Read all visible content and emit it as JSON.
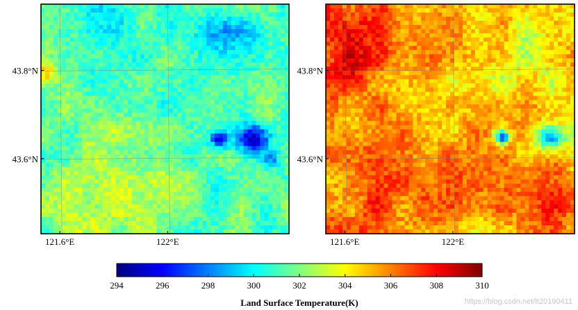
{
  "chart_data": {
    "type": "heatmap",
    "colormap": "jet",
    "colorbar": {
      "min": 294,
      "max": 310,
      "ticks": [
        "294",
        "296",
        "298",
        "300",
        "302",
        "304",
        "306",
        "308",
        "310"
      ],
      "title": "Land Surface Temperature(K)"
    },
    "panels": [
      {
        "name": "left",
        "grid_cols": 60,
        "grid_rows": 55,
        "base_temperature": 301.4,
        "noise_amplitude": 1.1,
        "y_tick_labels": [
          {
            "label": "43.8°N",
            "lat": 43.8
          },
          {
            "label": "43.6°N",
            "lat": 43.6
          }
        ],
        "x_tick_labels": [
          {
            "label": "121.6°E",
            "lon": 121.6
          },
          {
            "label": "122°E",
            "lon": 122.0
          }
        ],
        "features": [
          {
            "u": 0.78,
            "v": 0.18,
            "radius": 0.11,
            "delta": -2.3
          },
          {
            "u": 0.86,
            "v": 0.59,
            "radius": 0.05,
            "delta": -6.5
          },
          {
            "u": 0.72,
            "v": 0.59,
            "radius": 0.025,
            "delta": -6.0
          },
          {
            "u": 0.93,
            "v": 0.68,
            "radius": 0.03,
            "delta": -3.2
          },
          {
            "u": 0.3,
            "v": 0.02,
            "radius": 0.06,
            "delta": -2.0
          },
          {
            "u": 0.02,
            "v": 0.3,
            "radius": 0.03,
            "delta": 2.6
          },
          {
            "u": 0.3,
            "v": 0.85,
            "radius": 0.18,
            "delta": 1.6
          }
        ]
      },
      {
        "name": "right",
        "grid_cols": 60,
        "grid_rows": 55,
        "base_temperature": 304.8,
        "noise_amplitude": 1.2,
        "y_tick_labels": [
          {
            "label": "43.8°N",
            "lat": 43.8
          },
          {
            "label": "43.6°N",
            "lat": 43.6
          }
        ],
        "x_tick_labels": [
          {
            "label": "121.6°E",
            "lon": 121.6
          },
          {
            "label": "122°E",
            "lon": 122.0
          }
        ],
        "features": [
          {
            "u": 0.15,
            "v": 0.08,
            "radius": 0.2,
            "delta": 2.2
          },
          {
            "u": 0.05,
            "v": 0.3,
            "radius": 0.08,
            "delta": 2.4
          },
          {
            "u": 0.22,
            "v": 0.85,
            "radius": 0.2,
            "delta": 2.0
          },
          {
            "u": 0.92,
            "v": 0.85,
            "radius": 0.12,
            "delta": 1.8
          },
          {
            "u": 0.33,
            "v": 0.55,
            "radius": 0.12,
            "delta": 1.0
          },
          {
            "u": 0.9,
            "v": 0.58,
            "radius": 0.04,
            "delta": -7.5
          },
          {
            "u": 0.71,
            "v": 0.58,
            "radius": 0.02,
            "delta": -8.0
          },
          {
            "u": 0.78,
            "v": 0.22,
            "radius": 0.12,
            "delta": -1.2
          }
        ]
      }
    ]
  },
  "watermark": "https://blog.csdn.net/lt20190411"
}
